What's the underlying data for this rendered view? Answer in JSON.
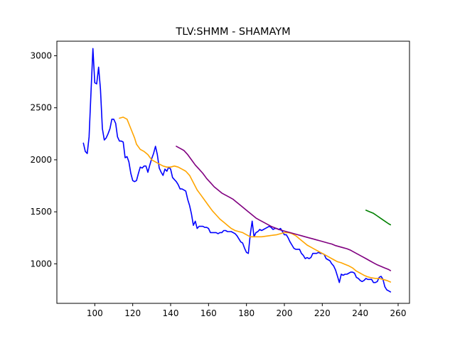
{
  "chart_data": {
    "type": "line",
    "title": "TLV:SHMM - SHAMAYM",
    "xlabel": "",
    "ylabel": "",
    "xlim": [
      80,
      266
    ],
    "ylim": [
      620,
      3140
    ],
    "x_ticks": [
      100,
      120,
      140,
      160,
      180,
      200,
      220,
      240,
      260
    ],
    "y_ticks": [
      1000,
      1500,
      2000,
      2500,
      3000
    ],
    "grid": false,
    "legend": "none",
    "series": [
      {
        "color": "#0000ff",
        "points": [
          [
            94,
            2160
          ],
          [
            95,
            2080
          ],
          [
            96,
            2060
          ],
          [
            97,
            2220
          ],
          [
            98,
            2650
          ],
          [
            99,
            3070
          ],
          [
            100,
            2740
          ],
          [
            101,
            2730
          ],
          [
            102,
            2890
          ],
          [
            103,
            2680
          ],
          [
            104,
            2300
          ],
          [
            105,
            2190
          ],
          [
            106,
            2210
          ],
          [
            107,
            2250
          ],
          [
            108,
            2300
          ],
          [
            109,
            2390
          ],
          [
            110,
            2390
          ],
          [
            111,
            2350
          ],
          [
            112,
            2220
          ],
          [
            113,
            2180
          ],
          [
            114,
            2180
          ],
          [
            115,
            2170
          ],
          [
            116,
            2020
          ],
          [
            117,
            2030
          ],
          [
            118,
            1980
          ],
          [
            119,
            1870
          ],
          [
            120,
            1800
          ],
          [
            121,
            1790
          ],
          [
            122,
            1800
          ],
          [
            123,
            1870
          ],
          [
            124,
            1930
          ],
          [
            125,
            1920
          ],
          [
            126,
            1940
          ],
          [
            127,
            1940
          ],
          [
            128,
            1880
          ],
          [
            129,
            1950
          ],
          [
            130,
            2010
          ],
          [
            131,
            2060
          ],
          [
            132,
            2130
          ],
          [
            133,
            2050
          ],
          [
            134,
            1920
          ],
          [
            135,
            1880
          ],
          [
            136,
            1850
          ],
          [
            137,
            1910
          ],
          [
            138,
            1890
          ],
          [
            139,
            1930
          ],
          [
            140,
            1910
          ],
          [
            141,
            1830
          ],
          [
            142,
            1810
          ],
          [
            143,
            1790
          ],
          [
            144,
            1760
          ],
          [
            145,
            1720
          ],
          [
            146,
            1720
          ],
          [
            147,
            1710
          ],
          [
            148,
            1700
          ],
          [
            149,
            1620
          ],
          [
            150,
            1560
          ],
          [
            151,
            1480
          ],
          [
            152,
            1370
          ],
          [
            153,
            1410
          ],
          [
            154,
            1340
          ],
          [
            155,
            1360
          ],
          [
            156,
            1360
          ],
          [
            157,
            1360
          ],
          [
            158,
            1350
          ],
          [
            159,
            1350
          ],
          [
            160,
            1340
          ],
          [
            161,
            1300
          ],
          [
            162,
            1300
          ],
          [
            163,
            1300
          ],
          [
            164,
            1300
          ],
          [
            165,
            1290
          ],
          [
            166,
            1300
          ],
          [
            167,
            1300
          ],
          [
            168,
            1320
          ],
          [
            169,
            1320
          ],
          [
            170,
            1310
          ],
          [
            171,
            1310
          ],
          [
            172,
            1310
          ],
          [
            173,
            1300
          ],
          [
            174,
            1290
          ],
          [
            175,
            1270
          ],
          [
            176,
            1240
          ],
          [
            177,
            1210
          ],
          [
            178,
            1200
          ],
          [
            179,
            1150
          ],
          [
            180,
            1110
          ],
          [
            181,
            1100
          ],
          [
            182,
            1280
          ],
          [
            183,
            1410
          ],
          [
            184,
            1260
          ],
          [
            185,
            1300
          ],
          [
            186,
            1310
          ],
          [
            187,
            1330
          ],
          [
            188,
            1320
          ],
          [
            189,
            1330
          ],
          [
            190,
            1340
          ],
          [
            191,
            1350
          ],
          [
            192,
            1360
          ],
          [
            193,
            1350
          ],
          [
            194,
            1330
          ],
          [
            195,
            1340
          ],
          [
            196,
            1340
          ],
          [
            197,
            1330
          ],
          [
            198,
            1340
          ],
          [
            199,
            1310
          ],
          [
            200,
            1280
          ],
          [
            201,
            1280
          ],
          [
            202,
            1250
          ],
          [
            203,
            1210
          ],
          [
            204,
            1180
          ],
          [
            205,
            1150
          ],
          [
            206,
            1140
          ],
          [
            207,
            1140
          ],
          [
            208,
            1140
          ],
          [
            209,
            1100
          ],
          [
            210,
            1080
          ],
          [
            211,
            1050
          ],
          [
            212,
            1060
          ],
          [
            213,
            1050
          ],
          [
            214,
            1060
          ],
          [
            215,
            1100
          ],
          [
            216,
            1100
          ],
          [
            217,
            1100
          ],
          [
            218,
            1110
          ],
          [
            219,
            1100
          ],
          [
            220,
            1100
          ],
          [
            221,
            1090
          ],
          [
            222,
            1050
          ],
          [
            223,
            1040
          ],
          [
            224,
            1030
          ],
          [
            225,
            1000
          ],
          [
            226,
            980
          ],
          [
            227,
            940
          ],
          [
            228,
            880
          ],
          [
            229,
            820
          ],
          [
            230,
            900
          ],
          [
            231,
            890
          ],
          [
            232,
            900
          ],
          [
            233,
            900
          ],
          [
            234,
            910
          ],
          [
            235,
            920
          ],
          [
            236,
            920
          ],
          [
            237,
            910
          ],
          [
            238,
            870
          ],
          [
            239,
            860
          ],
          [
            240,
            840
          ],
          [
            241,
            830
          ],
          [
            242,
            840
          ],
          [
            243,
            860
          ],
          [
            244,
            850
          ],
          [
            245,
            850
          ],
          [
            246,
            850
          ],
          [
            247,
            820
          ],
          [
            248,
            820
          ],
          [
            249,
            830
          ],
          [
            250,
            870
          ],
          [
            251,
            880
          ],
          [
            252,
            850
          ],
          [
            253,
            780
          ],
          [
            254,
            750
          ],
          [
            255,
            740
          ],
          [
            256,
            730
          ]
        ]
      },
      {
        "color": "#ffa500",
        "points": [
          [
            113,
            2400
          ],
          [
            115,
            2410
          ],
          [
            117,
            2390
          ],
          [
            119,
            2300
          ],
          [
            121,
            2210
          ],
          [
            122,
            2150
          ],
          [
            124,
            2100
          ],
          [
            126,
            2080
          ],
          [
            128,
            2050
          ],
          [
            130,
            2000
          ],
          [
            132,
            1980
          ],
          [
            134,
            1960
          ],
          [
            136,
            1940
          ],
          [
            138,
            1930
          ],
          [
            140,
            1930
          ],
          [
            142,
            1940
          ],
          [
            144,
            1930
          ],
          [
            146,
            1910
          ],
          [
            148,
            1890
          ],
          [
            150,
            1850
          ],
          [
            152,
            1780
          ],
          [
            154,
            1710
          ],
          [
            156,
            1660
          ],
          [
            158,
            1610
          ],
          [
            160,
            1560
          ],
          [
            162,
            1510
          ],
          [
            164,
            1470
          ],
          [
            166,
            1430
          ],
          [
            168,
            1400
          ],
          [
            170,
            1370
          ],
          [
            172,
            1340
          ],
          [
            174,
            1320
          ],
          [
            176,
            1310
          ],
          [
            178,
            1300
          ],
          [
            180,
            1280
          ],
          [
            182,
            1260
          ],
          [
            184,
            1260
          ],
          [
            186,
            1260
          ],
          [
            188,
            1260
          ],
          [
            190,
            1265
          ],
          [
            192,
            1270
          ],
          [
            194,
            1275
          ],
          [
            196,
            1280
          ],
          [
            198,
            1290
          ],
          [
            200,
            1300
          ],
          [
            202,
            1300
          ],
          [
            204,
            1290
          ],
          [
            206,
            1270
          ],
          [
            208,
            1240
          ],
          [
            210,
            1210
          ],
          [
            212,
            1180
          ],
          [
            214,
            1160
          ],
          [
            216,
            1140
          ],
          [
            218,
            1120
          ],
          [
            220,
            1100
          ],
          [
            222,
            1080
          ],
          [
            224,
            1060
          ],
          [
            226,
            1040
          ],
          [
            228,
            1020
          ],
          [
            230,
            1010
          ],
          [
            232,
            995
          ],
          [
            234,
            980
          ],
          [
            236,
            960
          ],
          [
            238,
            930
          ],
          [
            240,
            910
          ],
          [
            242,
            890
          ],
          [
            244,
            875
          ],
          [
            246,
            865
          ],
          [
            248,
            860
          ],
          [
            250,
            860
          ],
          [
            252,
            850
          ],
          [
            254,
            840
          ],
          [
            256,
            825
          ]
        ]
      },
      {
        "color": "#800080",
        "points": [
          [
            143,
            2130
          ],
          [
            145,
            2110
          ],
          [
            147,
            2090
          ],
          [
            149,
            2050
          ],
          [
            151,
            2000
          ],
          [
            153,
            1950
          ],
          [
            155,
            1910
          ],
          [
            157,
            1870
          ],
          [
            159,
            1820
          ],
          [
            161,
            1780
          ],
          [
            163,
            1740
          ],
          [
            165,
            1710
          ],
          [
            167,
            1680
          ],
          [
            169,
            1660
          ],
          [
            171,
            1640
          ],
          [
            173,
            1620
          ],
          [
            175,
            1590
          ],
          [
            177,
            1560
          ],
          [
            179,
            1530
          ],
          [
            181,
            1500
          ],
          [
            183,
            1470
          ],
          [
            185,
            1440
          ],
          [
            187,
            1420
          ],
          [
            189,
            1400
          ],
          [
            191,
            1380
          ],
          [
            193,
            1360
          ],
          [
            195,
            1345
          ],
          [
            197,
            1330
          ],
          [
            199,
            1320
          ],
          [
            201,
            1310
          ],
          [
            203,
            1300
          ],
          [
            205,
            1290
          ],
          [
            207,
            1280
          ],
          [
            209,
            1270
          ],
          [
            211,
            1260
          ],
          [
            213,
            1250
          ],
          [
            215,
            1240
          ],
          [
            217,
            1230
          ],
          [
            219,
            1220
          ],
          [
            221,
            1210
          ],
          [
            223,
            1200
          ],
          [
            225,
            1190
          ],
          [
            227,
            1175
          ],
          [
            229,
            1165
          ],
          [
            231,
            1155
          ],
          [
            233,
            1145
          ],
          [
            235,
            1130
          ],
          [
            237,
            1110
          ],
          [
            239,
            1090
          ],
          [
            241,
            1070
          ],
          [
            243,
            1050
          ],
          [
            245,
            1030
          ],
          [
            247,
            1010
          ],
          [
            249,
            990
          ],
          [
            251,
            975
          ],
          [
            253,
            960
          ],
          [
            255,
            945
          ],
          [
            256,
            935
          ]
        ]
      },
      {
        "color": "#008000",
        "points": [
          [
            243,
            1515
          ],
          [
            245,
            1500
          ],
          [
            247,
            1485
          ],
          [
            249,
            1460
          ],
          [
            251,
            1435
          ],
          [
            253,
            1410
          ],
          [
            255,
            1385
          ],
          [
            256,
            1375
          ]
        ]
      }
    ]
  }
}
